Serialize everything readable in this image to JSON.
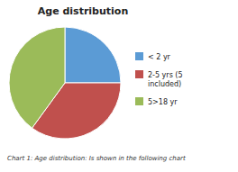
{
  "chart_data": {
    "type": "pie",
    "title": "Age distribution",
    "categories": [
      "< 2 yr",
      "2-5 yrs (5\nincluded)",
      "5>18 yr"
    ],
    "values": [
      0.25,
      0.35,
      0.4
    ],
    "colors": [
      "#5B9BD5",
      "#C0504D",
      "#9BBB59"
    ],
    "legend": "right",
    "caption": "Chart 1: Age distribution: Is shown in the following chart"
  }
}
